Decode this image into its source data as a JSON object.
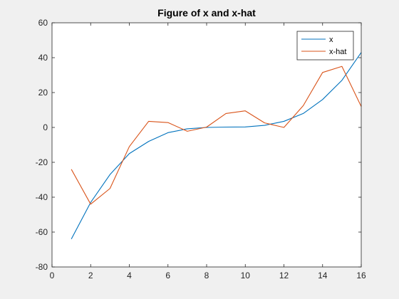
{
  "chart_data": {
    "type": "line",
    "title": "Figure of x and x-hat",
    "xlabel": "",
    "ylabel": "",
    "xlim": [
      0,
      16
    ],
    "ylim": [
      -80,
      60
    ],
    "xticks": [
      0,
      2,
      4,
      6,
      8,
      10,
      12,
      14,
      16
    ],
    "yticks": [
      -80,
      -60,
      -40,
      -20,
      0,
      20,
      40,
      60
    ],
    "grid": false,
    "legend": "top-right",
    "x": [
      1,
      2,
      3,
      4,
      5,
      6,
      7,
      8,
      9,
      10,
      11,
      12,
      13,
      14,
      15,
      16
    ],
    "series": [
      {
        "name": "x",
        "color": "#0072bd",
        "values": [
          -64,
          -43,
          -27,
          -15,
          -8,
          -3,
          -0.8,
          0,
          0.2,
          0.3,
          1.2,
          3.5,
          8,
          16,
          27,
          43
        ]
      },
      {
        "name": "x-hat",
        "color": "#d95319",
        "values": [
          -24,
          -44,
          -35,
          -11,
          3.5,
          2.8,
          -2.2,
          0.2,
          8,
          9.5,
          2.6,
          0,
          12.5,
          31.5,
          35,
          12
        ]
      }
    ]
  }
}
